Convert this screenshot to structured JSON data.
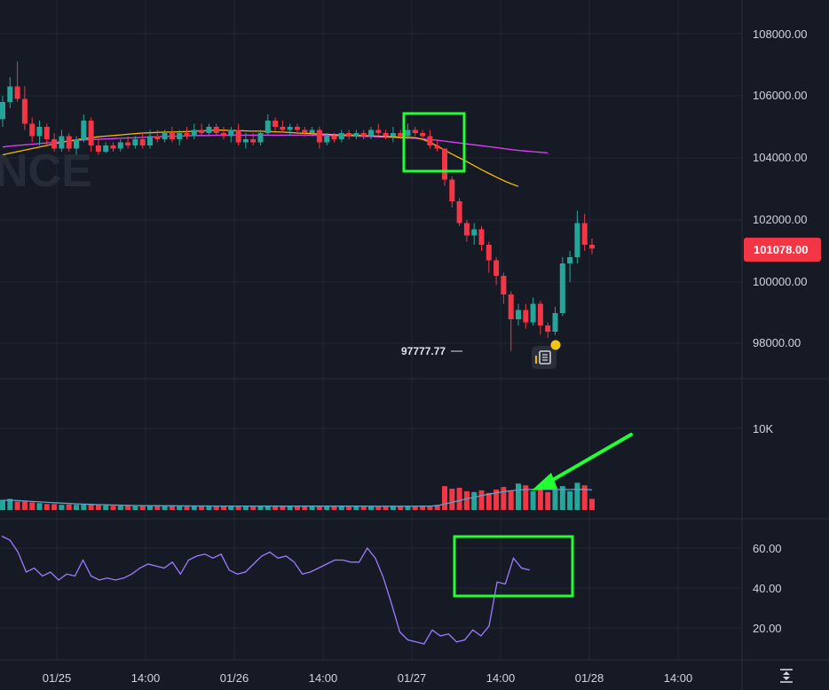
{
  "watermark": "NCE",
  "colors": {
    "background": "#161a25",
    "grid": "#232733",
    "bull": "#26a69a",
    "bear": "#f23645",
    "ma_fast": "#f0b90b",
    "ma_slow": "#e040fb",
    "volume_ma": "#58a6c9",
    "rsi": "#9c7bff",
    "annotation": "#22ff33",
    "axis_text": "#d1d4dc",
    "price_badge": "#f23645"
  },
  "price_axis": {
    "ticks": [
      "108000.00",
      "106000.00",
      "104000.00",
      "102000.00",
      "100000.00",
      "98000.00"
    ],
    "current_price": "101078.00",
    "low_label": "97777.77"
  },
  "volume_axis": {
    "ticks": [
      "10K"
    ]
  },
  "rsi_axis": {
    "ticks": [
      "60.00",
      "40.00",
      "20.00"
    ]
  },
  "time_axis": {
    "labels": [
      "01/25",
      "14:00",
      "01/26",
      "14:00",
      "01/27",
      "14:00",
      "01/28",
      "14:00"
    ]
  },
  "chart_data": [
    {
      "type": "candlestick",
      "x_labels": [
        "01/25",
        "14:00",
        "01/26",
        "14:00",
        "01/27",
        "14:00",
        "01/28",
        "14:00"
      ],
      "ylim": [
        97000,
        109000
      ],
      "current_price": 101078,
      "low": 97777.77,
      "candles": [
        [
          105250,
          106000,
          105000,
          105800
        ],
        [
          105800,
          106600,
          105600,
          106300
        ],
        [
          106300,
          107100,
          105800,
          105900
        ],
        [
          105900,
          106300,
          104900,
          105100
        ],
        [
          105100,
          105300,
          104500,
          104700
        ],
        [
          104700,
          105200,
          104400,
          105000
        ],
        [
          105000,
          105100,
          104400,
          104600
        ],
        [
          104600,
          104800,
          104200,
          104300
        ],
        [
          104300,
          104900,
          104200,
          104700
        ],
        [
          104700,
          104800,
          104200,
          104300
        ],
        [
          104300,
          104700,
          104100,
          104600
        ],
        [
          104600,
          105400,
          104500,
          105200
        ],
        [
          105200,
          105300,
          104200,
          104400
        ],
        [
          104400,
          104600,
          104100,
          104200
        ],
        [
          104200,
          104500,
          104150,
          104400
        ],
        [
          104400,
          104500,
          104200,
          104300
        ],
        [
          104300,
          104600,
          104200,
          104500
        ],
        [
          104500,
          104700,
          104300,
          104400
        ],
        [
          104400,
          104700,
          104300,
          104600
        ],
        [
          104600,
          104800,
          104300,
          104400
        ],
        [
          104400,
          104900,
          104300,
          104700
        ],
        [
          104700,
          104900,
          104500,
          104600
        ],
        [
          104600,
          104900,
          104500,
          104800
        ],
        [
          104800,
          105000,
          104500,
          104600
        ],
        [
          104600,
          104900,
          104400,
          104800
        ],
        [
          104800,
          105000,
          104600,
          104700
        ],
        [
          104700,
          105100,
          104600,
          104900
        ],
        [
          104900,
          105100,
          104700,
          104800
        ],
        [
          104800,
          105100,
          104700,
          105000
        ],
        [
          105000,
          105100,
          104700,
          104800
        ],
        [
          104800,
          105000,
          104600,
          104700
        ],
        [
          104700,
          105000,
          104500,
          104900
        ],
        [
          104900,
          105100,
          104400,
          104500
        ],
        [
          104500,
          104800,
          104300,
          104600
        ],
        [
          104600,
          104800,
          104400,
          104500
        ],
        [
          104500,
          104900,
          104400,
          104800
        ],
        [
          104800,
          105400,
          104700,
          105200
        ],
        [
          105200,
          105300,
          104800,
          105000
        ],
        [
          105000,
          105200,
          104800,
          104900
        ],
        [
          104900,
          105100,
          104700,
          105000
        ],
        [
          105000,
          105100,
          104800,
          104900
        ],
        [
          104900,
          105000,
          104700,
          104800
        ],
        [
          104800,
          105000,
          104700,
          104900
        ],
        [
          104900,
          105000,
          104300,
          104500
        ],
        [
          104500,
          104800,
          104400,
          104700
        ],
        [
          104700,
          104800,
          104500,
          104600
        ],
        [
          104600,
          104900,
          104500,
          104800
        ],
        [
          104800,
          104900,
          104600,
          104700
        ],
        [
          104700,
          104900,
          104600,
          104800
        ],
        [
          104800,
          104900,
          104600,
          104700
        ],
        [
          104700,
          105000,
          104600,
          104900
        ],
        [
          104900,
          105100,
          104700,
          104800
        ],
        [
          104800,
          104900,
          104600,
          104700
        ],
        [
          104700,
          105000,
          104500,
          104800
        ],
        [
          104800,
          104900,
          104600,
          104700
        ],
        [
          104700,
          105100,
          104600,
          104900
        ],
        [
          104900,
          105000,
          104700,
          104800
        ],
        [
          104800,
          104900,
          104600,
          104700
        ],
        [
          104700,
          104900,
          104300,
          104400
        ],
        [
          104400,
          104600,
          104200,
          104300
        ],
        [
          104300,
          104300,
          103100,
          103300
        ],
        [
          103300,
          103400,
          102400,
          102600
        ],
        [
          102600,
          102700,
          101800,
          101900
        ],
        [
          101900,
          102000,
          101300,
          101500
        ],
        [
          101500,
          101900,
          101200,
          101700
        ],
        [
          101700,
          101800,
          101000,
          101200
        ],
        [
          101200,
          101300,
          100300,
          100700
        ],
        [
          100700,
          100800,
          99900,
          100200
        ],
        [
          100200,
          100300,
          99300,
          99600
        ],
        [
          99600,
          99700,
          97780,
          98800
        ],
        [
          98800,
          99300,
          98600,
          99100
        ],
        [
          99100,
          99300,
          98500,
          98700
        ],
        [
          98700,
          99500,
          98600,
          99300
        ],
        [
          99300,
          99400,
          98300,
          98600
        ],
        [
          98600,
          98700,
          98200,
          98400
        ],
        [
          98400,
          99200,
          98300,
          99000
        ],
        [
          99000,
          100800,
          98900,
          100600
        ],
        [
          100600,
          101000,
          100000,
          100800
        ],
        [
          100800,
          102300,
          100600,
          101900
        ],
        [
          101900,
          102200,
          101000,
          101200
        ],
        [
          101200,
          101400,
          100900,
          101078
        ]
      ],
      "ma_fast": [
        104100,
        104150,
        104200,
        104250,
        104300,
        104350,
        104400,
        104450,
        104500,
        104550,
        104580,
        104620,
        104650,
        104680,
        104700,
        104720,
        104740,
        104760,
        104780,
        104800,
        104810,
        104820,
        104830,
        104830,
        104840,
        104850,
        104860,
        104870,
        104880,
        104890,
        104890,
        104880,
        104880,
        104870,
        104860,
        104860,
        104850,
        104840,
        104830,
        104820,
        104800,
        104790,
        104780,
        104770,
        104760,
        104750,
        104740,
        104740,
        104730,
        104720,
        104710,
        104700,
        104690,
        104680,
        104670,
        104660,
        104650,
        104600,
        104500,
        104380,
        104250,
        104120,
        104000,
        103880,
        103750,
        103620,
        103500,
        103380,
        103270,
        103170,
        103080
      ],
      "ma_slow": [
        104350,
        104380,
        104400,
        104420,
        104440,
        104460,
        104480,
        104500,
        104520,
        104540,
        104560,
        104580,
        104590,
        104600,
        104610,
        104620,
        104630,
        104640,
        104650,
        104660,
        104670,
        104680,
        104690,
        104700,
        104700,
        104710,
        104720,
        104720,
        104720,
        104730,
        104730,
        104730,
        104730,
        104730,
        104730,
        104730,
        104730,
        104730,
        104730,
        104730,
        104730,
        104730,
        104730,
        104730,
        104720,
        104720,
        104710,
        104710,
        104700,
        104690,
        104690,
        104680,
        104670,
        104660,
        104650,
        104640,
        104630,
        104610,
        104590,
        104570,
        104540,
        104510,
        104480,
        104450,
        104420,
        104390,
        104360,
        104330,
        104300,
        104270,
        104240,
        104220,
        104200,
        104180,
        104160
      ]
    },
    {
      "type": "bar",
      "name_visible": "",
      "ylim": [
        0,
        12000
      ],
      "volume": [
        1200,
        1300,
        1000,
        1100,
        900,
        800,
        700,
        700,
        600,
        650,
        600,
        700,
        650,
        600,
        550,
        500,
        500,
        500,
        450,
        480,
        500,
        480,
        460,
        450,
        440,
        430,
        440,
        450,
        430,
        420,
        440,
        430,
        420,
        410,
        430,
        440,
        460,
        450,
        440,
        450,
        440,
        430,
        440,
        430,
        420,
        430,
        440,
        450,
        460,
        450,
        440,
        430,
        420,
        440,
        450,
        430,
        440,
        420,
        500,
        600,
        2800,
        2500,
        2600,
        2200,
        2100,
        2300,
        2000,
        2400,
        2700,
        2300,
        3100,
        2900,
        2200,
        2400,
        2100,
        2500,
        2800,
        2200,
        3200,
        2900,
        1300
      ],
      "volume_ma": [
        1100,
        1150,
        1100,
        1050,
        1000,
        950,
        900,
        850,
        800,
        760,
        720,
        690,
        660,
        630,
        600,
        580,
        560,
        540,
        520,
        510,
        500,
        495,
        490,
        485,
        480,
        475,
        470,
        468,
        465,
        462,
        460,
        458,
        456,
        455,
        454,
        453,
        452,
        451,
        450,
        450,
        449,
        448,
        447,
        446,
        445,
        444,
        443,
        443,
        443,
        443,
        442,
        442,
        441,
        441,
        441,
        440,
        440,
        445,
        460,
        500,
        700,
        900,
        1100,
        1300,
        1500,
        1700,
        1850,
        2000,
        2150,
        2250,
        2350,
        2400,
        2420,
        2430,
        2420,
        2410,
        2400,
        2400,
        2420,
        2430,
        2350
      ]
    },
    {
      "type": "line",
      "ylim": [
        5,
        68
      ],
      "y_ticks": [
        60,
        40,
        20
      ],
      "rsi": [
        66,
        64,
        58,
        48,
        50,
        46,
        48,
        44,
        47,
        46,
        54,
        46,
        44,
        45,
        44,
        45,
        47,
        50,
        52,
        51,
        50,
        53,
        47,
        54,
        56,
        57,
        55,
        57,
        49,
        47,
        48,
        52,
        56,
        58,
        55,
        56,
        53,
        47,
        48,
        50,
        52,
        54,
        54,
        53,
        53,
        60,
        55,
        45,
        32,
        18,
        14,
        13,
        12,
        19,
        16,
        17,
        13,
        14,
        19,
        16,
        21,
        43,
        42,
        55,
        50,
        49
      ]
    }
  ]
}
